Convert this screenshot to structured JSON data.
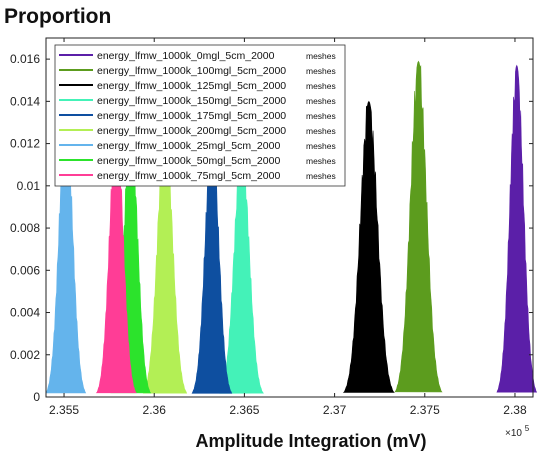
{
  "chart_data": {
    "type": "area",
    "title": "Proportion",
    "xlabel": "Amplitude Integration (mV)",
    "x_multiplier": "×10^5",
    "x_multiplier_base": "×10",
    "x_multiplier_exp": "5",
    "xlim": [
      2.354,
      2.381
    ],
    "ylim": [
      0,
      0.017
    ],
    "x_ticks": [
      2.355,
      2.36,
      2.365,
      2.37,
      2.375,
      2.38
    ],
    "x_tick_labels": [
      "2.355",
      "2.36",
      "2.365",
      "2.37",
      "2.375",
      "2.38"
    ],
    "y_ticks": [
      0,
      0.002,
      0.004,
      0.006,
      0.008,
      0.01,
      0.012,
      0.014,
      0.016
    ],
    "y_tick_labels": [
      "0",
      "0.002",
      "0.004",
      "0.006",
      "0.008",
      "0.01",
      "0.012",
      "0.014",
      "0.016"
    ],
    "grid": false,
    "legend_position": "top-left",
    "series": [
      {
        "name": "energy_lfmw_1000k_0mgl_5cm_2000",
        "suffix": "meshes",
        "color": "#5b1fa8",
        "center": 2.3801,
        "halfwidth": 0.0011,
        "peak": 0.0157
      },
      {
        "name": "energy_lfmw_1000k_100mgl_5cm_2000",
        "suffix": "meshes",
        "color": "#5c9c1e",
        "center": 2.37465,
        "halfwidth": 0.0013,
        "peak": 0.0159
      },
      {
        "name": "energy_lfmw_1000k_125mgl_5cm_2000",
        "suffix": "meshes",
        "color": "#000000",
        "center": 2.3719,
        "halfwidth": 0.0014,
        "peak": 0.014
      },
      {
        "name": "energy_lfmw_1000k_150mgl_5cm_2000",
        "suffix": "meshes",
        "color": "#44f2b8",
        "center": 2.36485,
        "halfwidth": 0.0012,
        "peak": 0.012
      },
      {
        "name": "energy_lfmw_1000k_175mgl_5cm_2000",
        "suffix": "meshes",
        "color": "#0e4fa0",
        "center": 2.3632,
        "halfwidth": 0.0011,
        "peak": 0.0125
      },
      {
        "name": "energy_lfmw_1000k_200mgl_5cm_2000",
        "suffix": "meshes",
        "color": "#b3ef55",
        "center": 2.3606,
        "halfwidth": 0.0012,
        "peak": 0.013
      },
      {
        "name": "energy_lfmw_1000k_25mgl_5cm_2000",
        "suffix": "meshes",
        "color": "#64b4ec",
        "center": 2.3551,
        "halfwidth": 0.0011,
        "peak": 0.0135
      },
      {
        "name": "energy_lfmw_1000k_50mgl_5cm_2000",
        "suffix": "meshes",
        "color": "#2ce32c",
        "center": 2.3587,
        "halfwidth": 0.0011,
        "peak": 0.013
      },
      {
        "name": "energy_lfmw_1000k_75mgl_5cm_2000",
        "suffix": "meshes",
        "color": "#ff3d96",
        "center": 2.3579,
        "halfwidth": 0.0011,
        "peak": 0.013
      }
    ]
  }
}
